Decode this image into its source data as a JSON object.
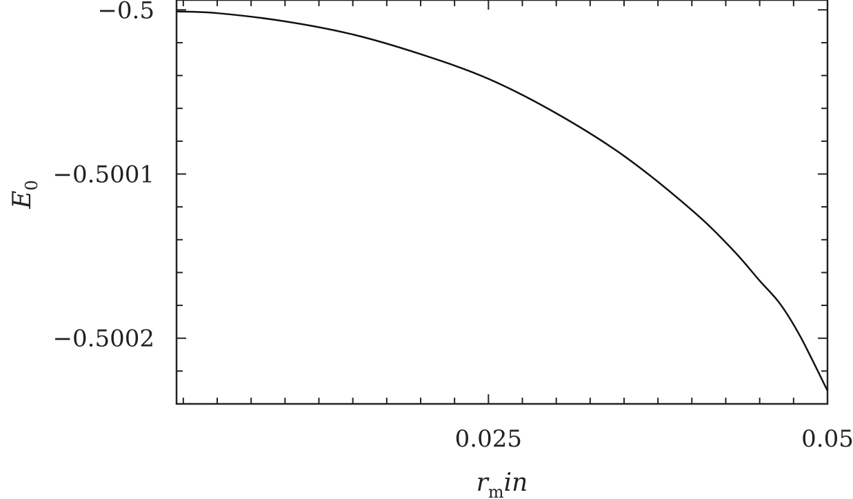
{
  "chart_data": {
    "type": "line",
    "xlabel": "r_m in",
    "xlabel_parts": {
      "base": "r",
      "sub": "m",
      "rest": "in"
    },
    "ylabel": "E_0",
    "ylabel_parts": {
      "base": "E",
      "sub": "0"
    },
    "xlim": [
      0.002,
      0.05
    ],
    "ylim": [
      -0.50024,
      -0.499994
    ],
    "x_ticks": [
      {
        "value": 0.025,
        "label": "0.025"
      },
      {
        "value": 0.05,
        "label": "0.05"
      }
    ],
    "y_ticks": [
      {
        "value": -0.5,
        "label": "−0.5"
      },
      {
        "value": -0.5001,
        "label": "−0.5001"
      },
      {
        "value": -0.5002,
        "label": "−0.5002"
      }
    ],
    "x_minor_step": 0.0025,
    "y_minor_step": 2e-05,
    "grid": false,
    "series": [
      {
        "x": [
          0.002,
          0.005,
          0.01,
          0.015,
          0.02,
          0.025,
          0.03,
          0.035,
          0.04,
          0.043,
          0.045,
          0.0465,
          0.048,
          0.05
        ],
        "y": [
          -0.500001,
          -0.500002,
          -0.500007,
          -0.500015,
          -0.500027,
          -0.500042,
          -0.500063,
          -0.500089,
          -0.500122,
          -0.500146,
          -0.500165,
          -0.500179,
          -0.500199,
          -0.500232
        ]
      }
    ]
  }
}
